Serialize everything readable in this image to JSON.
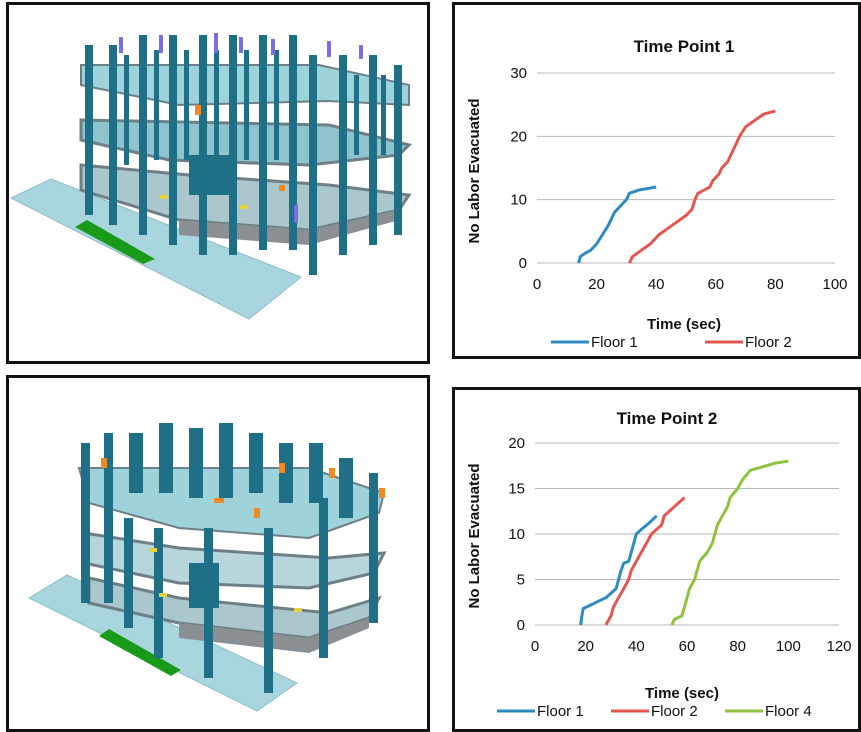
{
  "scenes": [
    {
      "name": "building-model-time-point-1"
    },
    {
      "name": "building-model-time-point-2"
    }
  ],
  "colors": {
    "Floor 1": "#2e8bc0",
    "Floor 2": "#e0584f",
    "Floor 4": "#8fc23f",
    "grid": "#b8b8b8",
    "column": "#1f6f86",
    "slab": "#9fd3dc",
    "ground_marker": "#1a9a1a",
    "equipment": "#f08a24"
  },
  "chart_data": [
    {
      "type": "line",
      "title": "Time Point 1",
      "xlabel": "Time (sec)",
      "ylabel": "No Labor Evacuated",
      "xlim": [
        0,
        100
      ],
      "ylim": [
        0,
        30
      ],
      "xticks": [
        0,
        20,
        40,
        60,
        80,
        100
      ],
      "yticks": [
        0,
        10,
        20,
        30
      ],
      "grid": true,
      "legend": "bottom",
      "series": [
        {
          "name": "Floor 1",
          "points": [
            [
              14,
              0
            ],
            [
              14.5,
              1
            ],
            [
              16,
              1.5
            ],
            [
              18,
              2
            ],
            [
              20,
              3
            ],
            [
              22,
              4.5
            ],
            [
              24,
              6
            ],
            [
              25,
              7
            ],
            [
              26,
              8
            ],
            [
              28,
              9
            ],
            [
              30,
              10
            ],
            [
              31,
              11
            ],
            [
              34,
              11.5
            ],
            [
              40,
              12
            ]
          ]
        },
        {
          "name": "Floor 2",
          "points": [
            [
              31,
              0
            ],
            [
              32,
              1
            ],
            [
              35,
              2
            ],
            [
              38,
              3
            ],
            [
              41,
              4.5
            ],
            [
              44,
              5.5
            ],
            [
              47,
              6.5
            ],
            [
              50,
              7.5
            ],
            [
              52,
              8.5
            ],
            [
              53,
              10
            ],
            [
              54,
              11
            ],
            [
              56,
              11.5
            ],
            [
              58,
              12
            ],
            [
              59,
              13
            ],
            [
              61,
              14
            ],
            [
              62,
              15
            ],
            [
              64,
              16
            ],
            [
              65,
              17
            ],
            [
              66,
              18
            ],
            [
              67,
              19
            ],
            [
              68,
              20
            ],
            [
              70,
              21.5
            ],
            [
              73,
              22.5
            ],
            [
              76,
              23.5
            ],
            [
              80,
              24
            ]
          ]
        }
      ]
    },
    {
      "type": "line",
      "title": "Time Point 2",
      "xlabel": "Time (sec)",
      "ylabel": "No Labor Evacuated",
      "xlim": [
        0,
        120
      ],
      "ylim": [
        0,
        20
      ],
      "xticks": [
        0,
        20,
        40,
        60,
        80,
        100,
        120
      ],
      "yticks": [
        0,
        5,
        10,
        15,
        20
      ],
      "grid": true,
      "legend": "bottom",
      "series": [
        {
          "name": "Floor 1",
          "points": [
            [
              18,
              0
            ],
            [
              18.5,
              1
            ],
            [
              19,
              1.8
            ],
            [
              22,
              2.2
            ],
            [
              25,
              2.6
            ],
            [
              28,
              3
            ],
            [
              30,
              3.5
            ],
            [
              32,
              4
            ],
            [
              33,
              5
            ],
            [
              34,
              6
            ],
            [
              35,
              6.8
            ],
            [
              37,
              7
            ],
            [
              38,
              8
            ],
            [
              39,
              9
            ],
            [
              40,
              10
            ],
            [
              42,
              10.5
            ],
            [
              45,
              11.2
            ],
            [
              48,
              12
            ]
          ]
        },
        {
          "name": "Floor 2",
          "points": [
            [
              28,
              0
            ],
            [
              30,
              1
            ],
            [
              31,
              2
            ],
            [
              33,
              3
            ],
            [
              35,
              4
            ],
            [
              37,
              5
            ],
            [
              38,
              6
            ],
            [
              40,
              7
            ],
            [
              42,
              8
            ],
            [
              44,
              9
            ],
            [
              46,
              10
            ],
            [
              48,
              10.5
            ],
            [
              50,
              11
            ],
            [
              51,
              12
            ],
            [
              53,
              12.5
            ],
            [
              55,
              13
            ],
            [
              57,
              13.5
            ],
            [
              59,
              14
            ]
          ]
        },
        {
          "name": "Floor 4",
          "points": [
            [
              54,
              0
            ],
            [
              55,
              0.6
            ],
            [
              58,
              1
            ],
            [
              59,
              2
            ],
            [
              60,
              3
            ],
            [
              61,
              4
            ],
            [
              63,
              5
            ],
            [
              64,
              6
            ],
            [
              65,
              7
            ],
            [
              68,
              8
            ],
            [
              70,
              9
            ],
            [
              71,
              10
            ],
            [
              72,
              11
            ],
            [
              74,
              12
            ],
            [
              76,
              13
            ],
            [
              77,
              14
            ],
            [
              80,
              15
            ],
            [
              82,
              16
            ],
            [
              85,
              17
            ],
            [
              90,
              17.4
            ],
            [
              95,
              17.8
            ],
            [
              100,
              18
            ]
          ]
        }
      ]
    }
  ]
}
